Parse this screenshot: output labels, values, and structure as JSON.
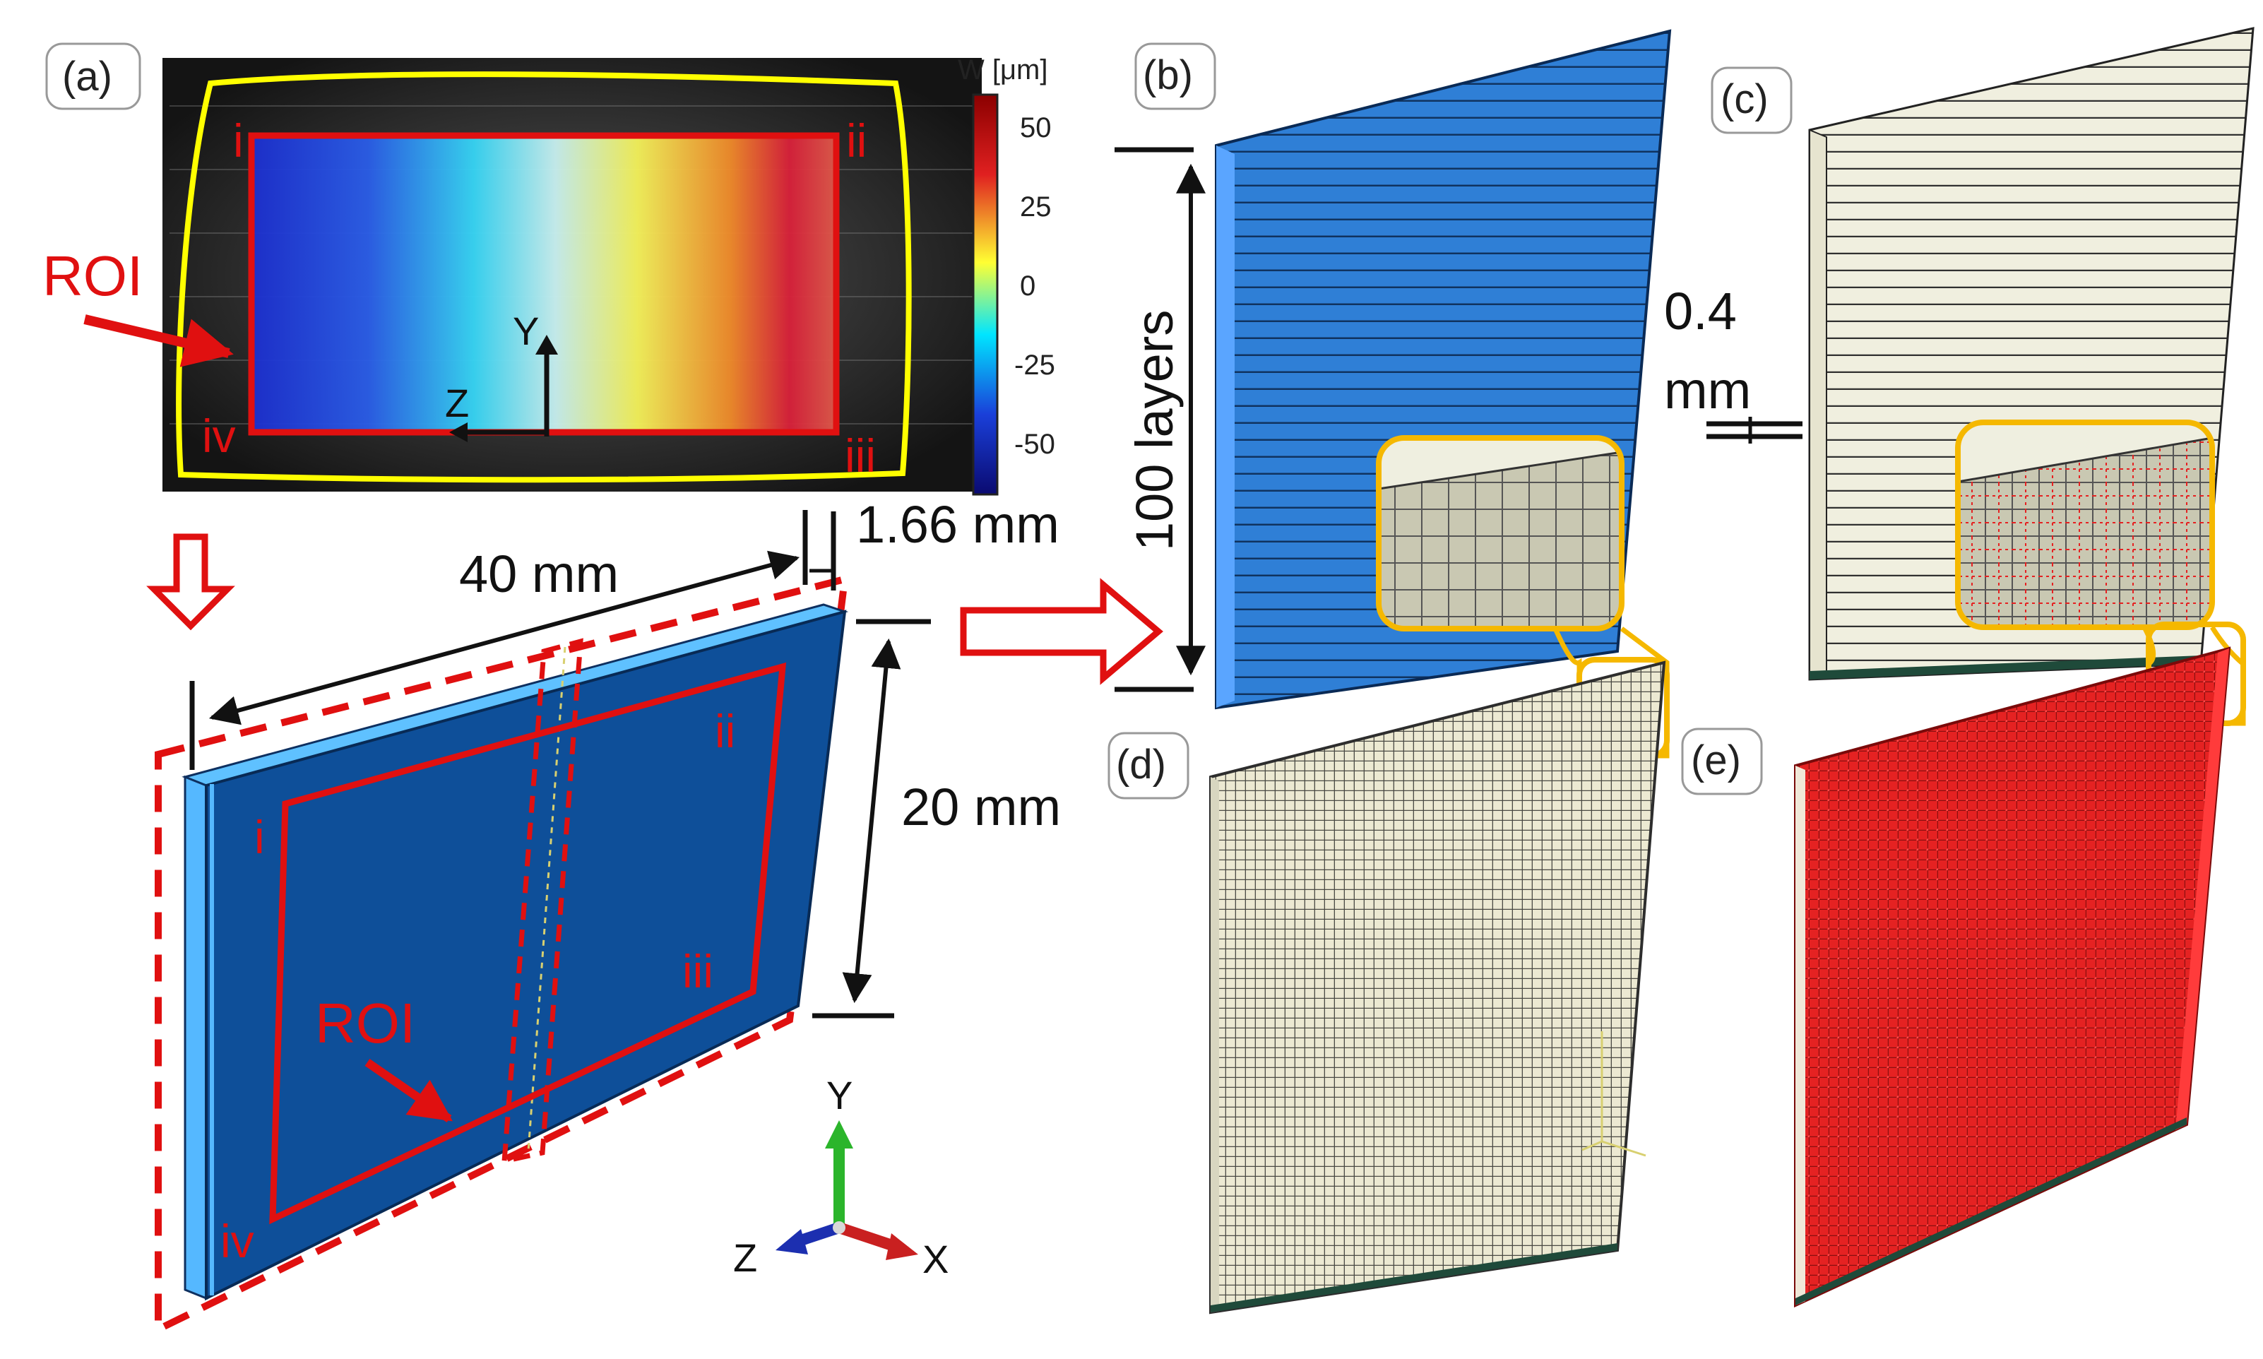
{
  "panels": {
    "a": "(a)",
    "b": "(b)",
    "c": "(c)",
    "d": "(d)",
    "e": "(e)"
  },
  "colorbar": {
    "title": "W [μm]",
    "ticks": [
      "50",
      "25",
      "0",
      "-25",
      "-50"
    ],
    "stops": [
      "#8b0000",
      "#e02020",
      "#ffff33",
      "#00e5ff",
      "#1a3fd9",
      "#0a0a70"
    ]
  },
  "photo": {
    "roi_label": "ROI",
    "corners": [
      "i",
      "ii",
      "iii",
      "iv"
    ],
    "axis_y": "Y",
    "axis_z": "Z"
  },
  "model": {
    "length": "40 mm",
    "height": "20 mm",
    "thickness": "1.66 mm",
    "roi_label": "ROI",
    "corners": [
      "i",
      "ii",
      "iii",
      "iv"
    ],
    "triad": {
      "y": "Y",
      "z": "Z",
      "x": "X"
    }
  },
  "mesh": {
    "layers_label": "100 layers",
    "layer_thickness_line1": "0.4",
    "layer_thickness_line2": "mm"
  },
  "colors": {
    "annotation_red": "#e01010",
    "highlight_yellow": "#ffff00",
    "zoom_gold": "#f5b800",
    "part_blue": "#0e4f99",
    "part_edge_blue": "#55b8ff",
    "mesh_blue": "#2f7fd6",
    "mesh_beige": "#f0efdf",
    "mesh_red": "#e52222",
    "triad_green": "#2bb52b",
    "triad_blue": "#1c2fb0",
    "triad_red": "#c92020"
  }
}
